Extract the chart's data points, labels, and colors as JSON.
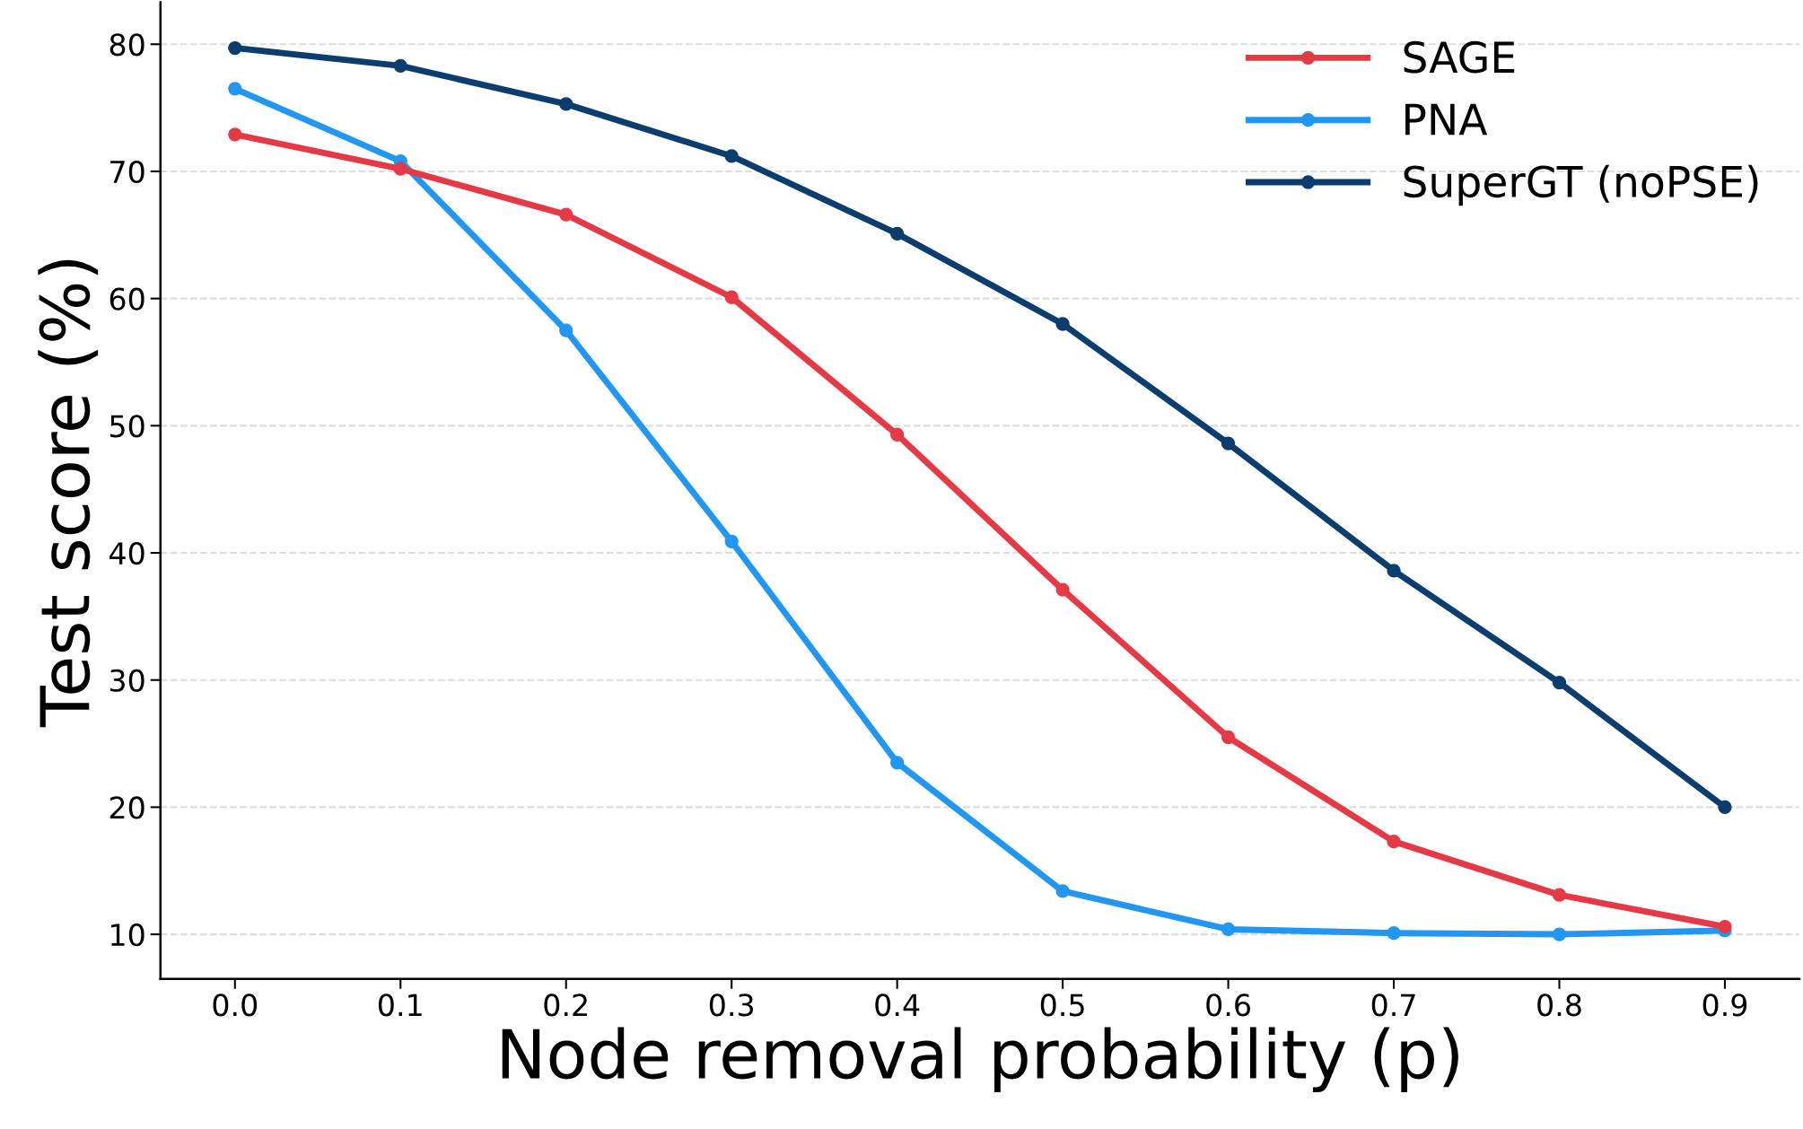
{
  "chart_data": {
    "type": "line",
    "xlabel": "Node removal probability (p)",
    "ylabel": "Test score (%)",
    "x": [
      0.0,
      0.1,
      0.2,
      0.3,
      0.4,
      0.5,
      0.6,
      0.7,
      0.8,
      0.9
    ],
    "series": [
      {
        "name": "SAGE",
        "color": "#e63946",
        "values": [
          72.9,
          70.2,
          66.6,
          60.1,
          49.3,
          37.1,
          25.5,
          17.3,
          13.1,
          10.6
        ]
      },
      {
        "name": "PNA",
        "color": "#2196f3",
        "values": [
          76.5,
          70.8,
          57.5,
          40.9,
          23.5,
          13.4,
          10.4,
          10.1,
          10.0,
          10.3
        ]
      },
      {
        "name": "SuperGT (noPSE)",
        "color": "#0b3d6e",
        "values": [
          79.7,
          78.3,
          75.3,
          71.2,
          65.1,
          58.0,
          48.6,
          38.6,
          29.8,
          20.0
        ]
      }
    ],
    "xlim": [
      -0.045,
      0.945
    ],
    "xticks": [
      {
        "value": 0.0,
        "label": "0.0"
      },
      {
        "value": 0.1,
        "label": "0.1"
      },
      {
        "value": 0.2,
        "label": "0.2"
      },
      {
        "value": 0.3,
        "label": "0.3"
      },
      {
        "value": 0.4,
        "label": "0.4"
      },
      {
        "value": 0.5,
        "label": "0.5"
      },
      {
        "value": 0.6,
        "label": "0.6"
      },
      {
        "value": 0.7,
        "label": "0.7"
      },
      {
        "value": 0.8,
        "label": "0.8"
      },
      {
        "value": 0.9,
        "label": "0.9"
      }
    ],
    "ylim": [
      6.5,
      83.3
    ],
    "yticks": [
      10,
      20,
      30,
      40,
      50,
      60,
      70,
      80
    ],
    "grid": "y",
    "legend": "top right",
    "marker": "circle",
    "line_style": "solid"
  }
}
